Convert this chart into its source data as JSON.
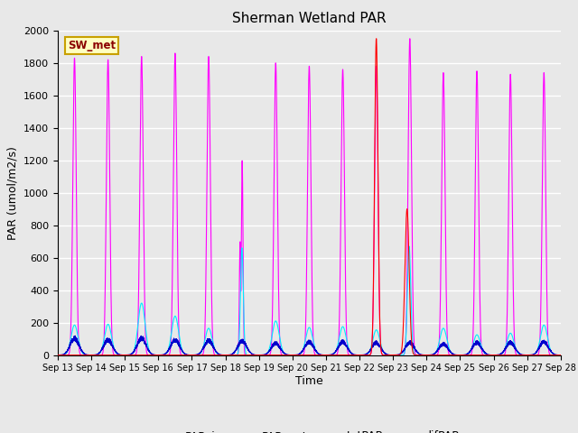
{
  "title": "Sherman Wetland PAR",
  "ylabel": "PAR (umol/m2/s)",
  "xlabel": "Time",
  "station_label": "SW_met",
  "ylim": [
    0,
    2000
  ],
  "xlim_days": [
    13,
    28
  ],
  "colors": {
    "PAR_in": "#ff0000",
    "PAR_out": "#0000cc",
    "totPAR": "#ff00ff",
    "difPAR": "#00eeff"
  },
  "background_color": "#e8e8e8",
  "plot_bg_color": "#e8e8e8",
  "grid_color": "#ffffff",
  "tick_labels": [
    "Sep 13",
    "Sep 14",
    "Sep 15",
    "Sep 16",
    "Sep 17",
    "Sep 18",
    "Sep 19",
    "Sep 20",
    "Sep 21",
    "Sep 22",
    "Sep 23",
    "Sep 24",
    "Sep 25",
    "Sep 26",
    "Sep 27",
    "Sep 28"
  ],
  "peaks_tot": [
    1830,
    1820,
    1840,
    1860,
    1840,
    1200,
    1800,
    1780,
    1760,
    1780,
    1950,
    1740,
    1750,
    1730,
    1740
  ],
  "peaks_out": [
    120,
    110,
    120,
    110,
    105,
    100,
    85,
    95,
    95,
    90,
    90,
    80,
    90,
    90,
    95
  ],
  "peaks_dif": [
    185,
    190,
    320,
    240,
    165,
    660,
    210,
    170,
    175,
    155,
    670,
    165,
    125,
    135,
    185
  ],
  "par_in_day": 9,
  "par_in_peak": 1950,
  "par_in_partial_day": 10,
  "par_in_partial_peak": 900
}
